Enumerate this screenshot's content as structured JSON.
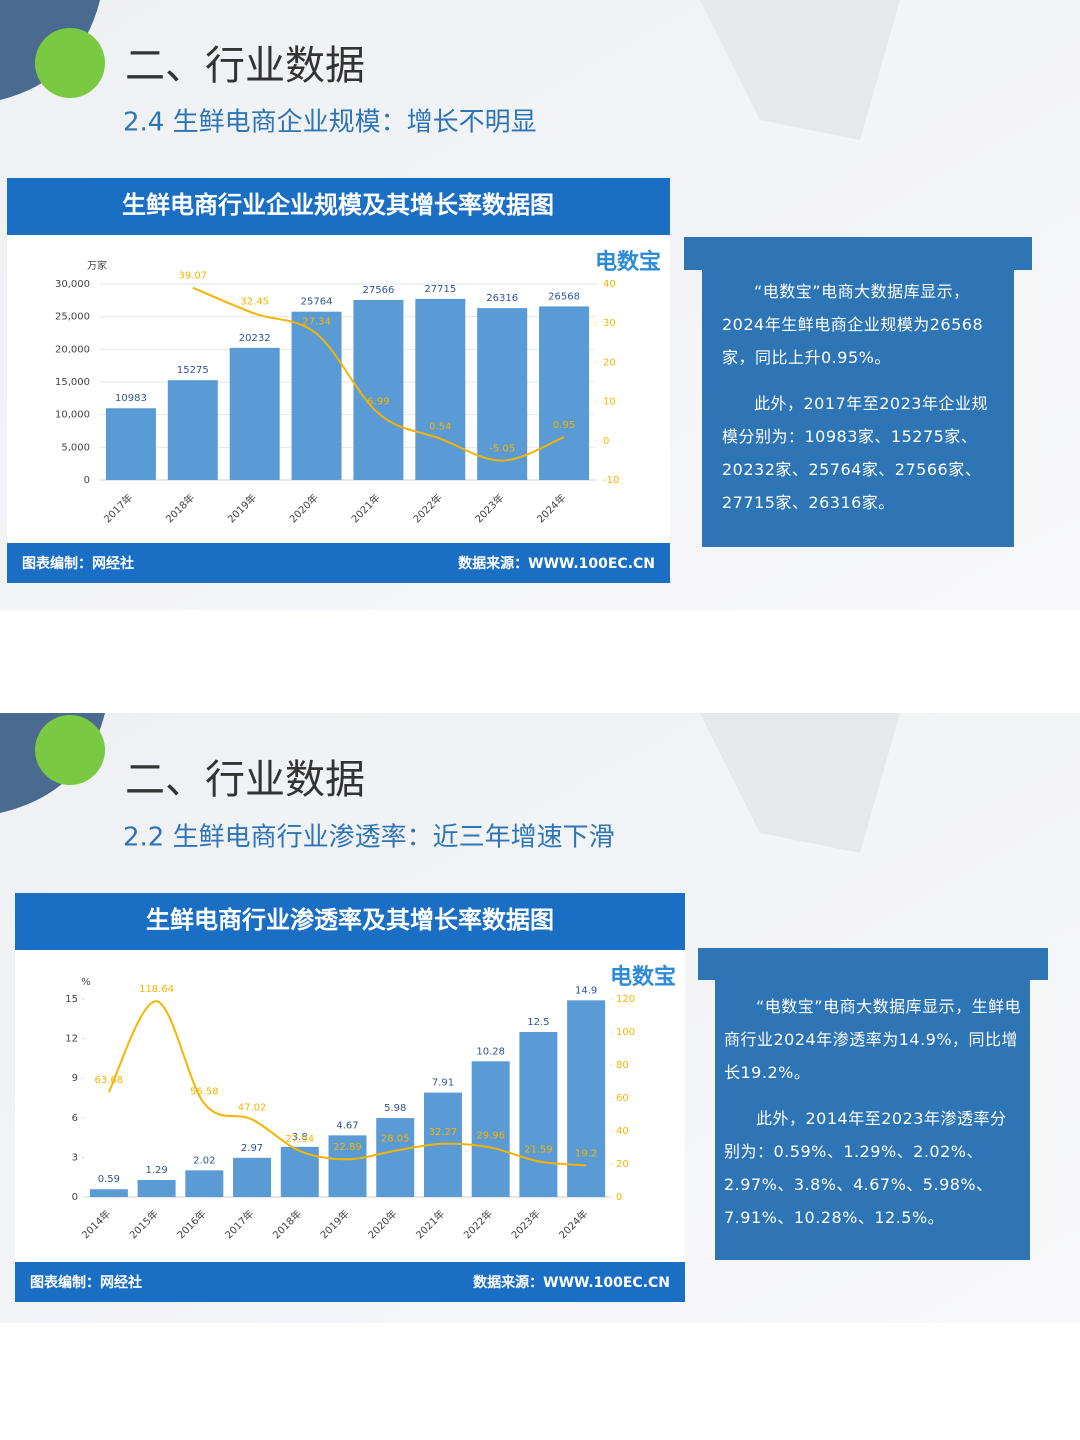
{
  "slides": [
    {
      "heading": "二、行业数据",
      "subheading": "2.4 生鲜电商企业规模：增长不明显",
      "logo": "电数宝",
      "credit": "图表编制：网经社",
      "source": "数据来源：WWW.100EC.CN",
      "paragraphs": [
        "“电数宝”电商大数据库显示，2024年生鲜电商企业规模为26568家，同比上升0.95%。",
        "此外，2017年至2023年企业规模分别为：10983家、15275家、20232家、25764家、27566家、27715家、26316家。"
      ]
    },
    {
      "heading": "二、行业数据",
      "subheading": "2.2 生鲜电商行业渗透率：近三年增速下滑",
      "logo": "电数宝",
      "credit": "图表编制：网经社",
      "source": "数据来源：WWW.100EC.CN",
      "paragraphs": [
        "“电数宝”电商大数据库显示，生鲜电商行业2024年渗透率为14.9%，同比增长19.2%。",
        "此外，2014年至2023年渗透率分别为：0.59%、1.29%、2.02%、2.97%、3.8%、4.67%、5.98%、7.91%、10.28%、12.5%。"
      ]
    }
  ],
  "chart_data": [
    {
      "type": "bar",
      "title": "生鲜电商行业企业规模及其增长率数据图",
      "y_label": "万家",
      "categories": [
        "2017年",
        "2018年",
        "2019年",
        "2020年",
        "2021年",
        "2022年",
        "2023年",
        "2024年"
      ],
      "series": [
        {
          "color": "#5b9bd5",
          "values": [
            10983,
            15275,
            20232,
            25764,
            27566,
            27715,
            26316,
            26568
          ]
        },
        {
          "type": "line",
          "axis": "y2",
          "color": "#f4b400",
          "values": [
            null,
            39.07,
            32.45,
            27.34,
            6.99,
            0.54,
            -5.05,
            0.95
          ]
        }
      ],
      "ylim": [
        0,
        30000
      ],
      "yticks": [
        0,
        {
          "value": 5000,
          "label": "5,000"
        },
        {
          "value": 10000,
          "label": "10,000"
        },
        {
          "value": 15000,
          "label": "15,000"
        },
        {
          "value": 20000,
          "label": "20,000"
        },
        {
          "value": 25000,
          "label": "25,000"
        },
        {
          "value": 30000,
          "label": "30,000"
        }
      ],
      "y2lim": [
        -10,
        40
      ],
      "y2ticks": [
        -10,
        0,
        10,
        20,
        30,
        40
      ],
      "grid": true
    },
    {
      "type": "bar",
      "title": "生鲜电商行业渗透率及其增长率数据图",
      "y_label": "%",
      "categories": [
        "2014年",
        "2015年",
        "2016年",
        "2017年",
        "2018年",
        "2019年",
        "2020年",
        "2021年",
        "2022年",
        "2023年",
        "2024年"
      ],
      "series": [
        {
          "color": "#5b9bd5",
          "values": [
            0.59,
            1.29,
            2.02,
            2.97,
            3.8,
            4.67,
            5.98,
            7.91,
            10.28,
            12.5,
            14.9
          ]
        },
        {
          "type": "line",
          "axis": "y2",
          "color": "#f4b400",
          "values": [
            63.68,
            118.64,
            56.58,
            47.02,
            27.94,
            22.89,
            28.05,
            32.27,
            29.96,
            21.59,
            19.2
          ]
        }
      ],
      "ylim": [
        0,
        15
      ],
      "yticks": [
        0,
        3,
        6,
        9,
        12,
        15
      ],
      "y2lim": [
        0,
        120
      ],
      "y2ticks": [
        0,
        20,
        40,
        60,
        80,
        100,
        120
      ],
      "grid": false
    }
  ]
}
